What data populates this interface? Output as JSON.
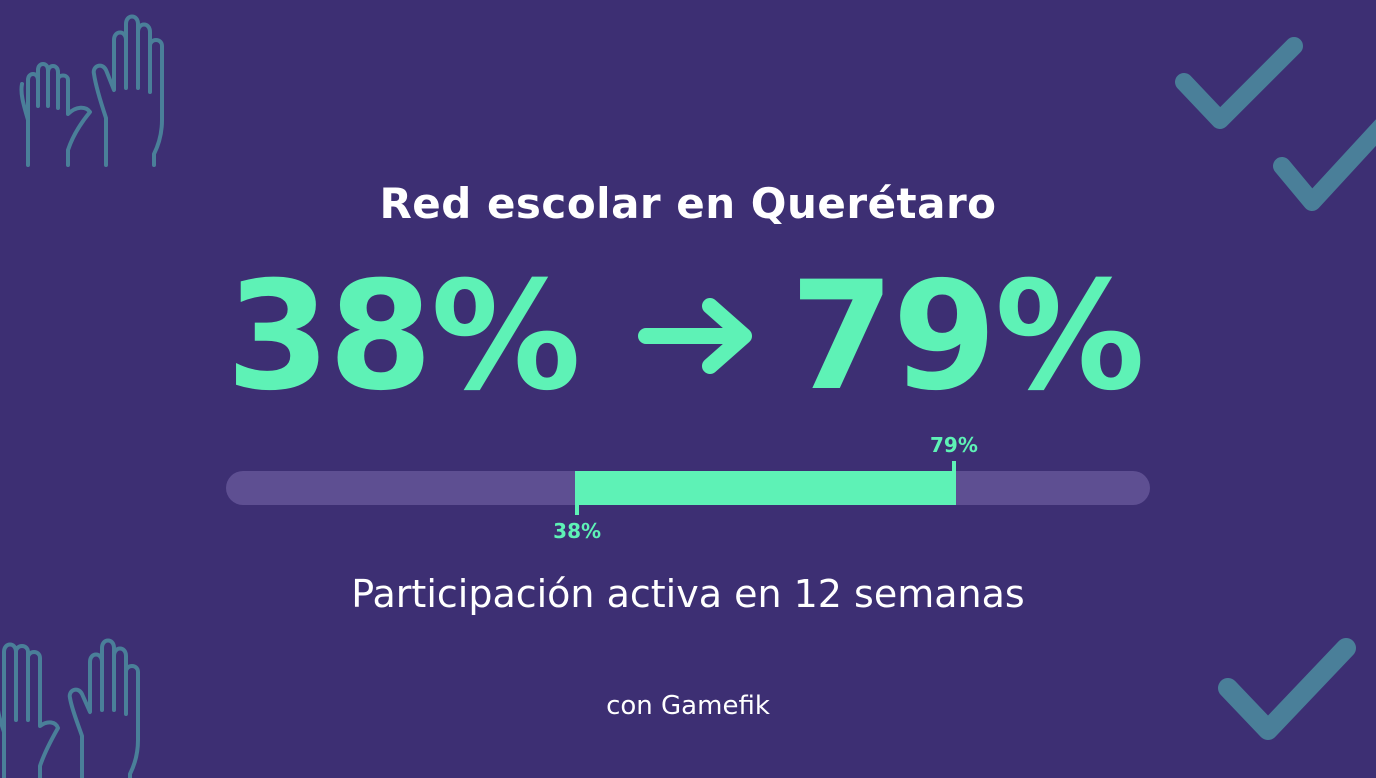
{
  "colors": {
    "background": "#3d2f73",
    "accent": "#5ef2b6",
    "track": "#5e4f92",
    "text": "#ffffff",
    "decor": "#4a7f99"
  },
  "title": "Red escolar en Querétaro",
  "stat": {
    "from_label": "38%",
    "to_label": "79%",
    "arrow_icon": "arrow-right-icon"
  },
  "progress": {
    "start_value": 0.38,
    "end_value": 0.79,
    "start_label": "38%",
    "end_label": "79%"
  },
  "subtitle": "Participación activa en 12 semanas",
  "brand": "con Gamefik",
  "decorations": {
    "top_left": "raised-hands-icon",
    "bottom_left": "raised-hands-icon",
    "top_right": "checkmark-icon",
    "bottom_right": "checkmark-icon"
  }
}
